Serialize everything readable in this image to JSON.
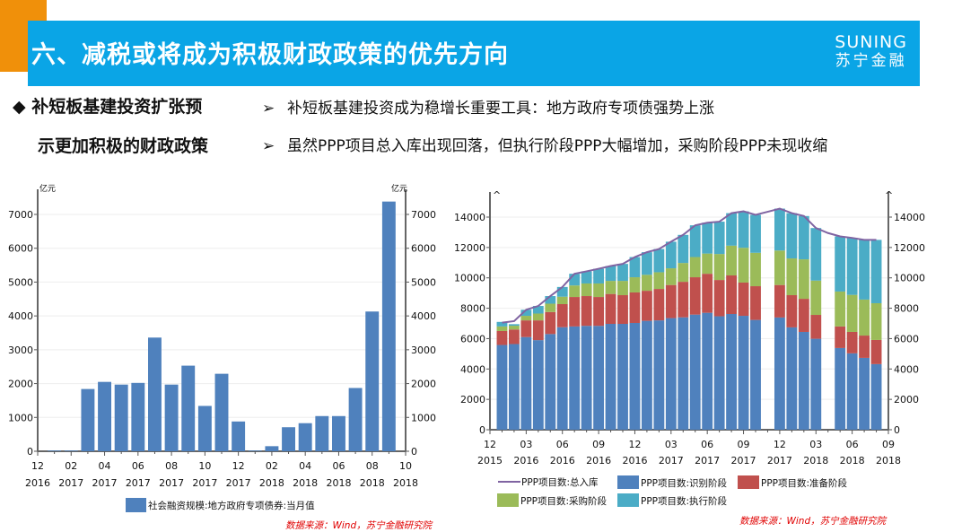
{
  "header": {
    "title": "六、减税或将成为积极财政政策的优先方向",
    "logo_en": "SUNING",
    "logo_cn": "苏宁金融"
  },
  "bullets": {
    "lead_line1": "◆ 补短板基建投资扩张预",
    "lead_line2": "示更加积极的财政政策",
    "points": [
      {
        "arrow": "➢",
        "text": "补短板基建投资成为稳增长重要工具：地方政府专项债强势上涨"
      },
      {
        "arrow": "➢",
        "text": "虽然PPP项目总入库出现回落，但执行阶段PPP大幅增加，采购阶段PPP未现收缩"
      }
    ]
  },
  "chart_data": [
    {
      "type": "bar",
      "unit_left": "亿元",
      "unit_right": "亿元",
      "ylim": [
        0,
        7000
      ],
      "yticks": [
        "0",
        "1000",
        "2000",
        "3000",
        "4000",
        "5000",
        "6000",
        "7000"
      ],
      "xtick_labels": [
        [
          "12",
          "2016"
        ],
        [
          "02",
          "2017"
        ],
        [
          "04",
          "2017"
        ],
        [
          "06",
          "2017"
        ],
        [
          "08",
          "2017"
        ],
        [
          "10",
          "2017"
        ],
        [
          "12",
          "2017"
        ],
        [
          "02",
          "2018"
        ],
        [
          "04",
          "2018"
        ],
        [
          "06",
          "2018"
        ],
        [
          "08",
          "2018"
        ],
        [
          "10",
          "2018"
        ]
      ],
      "categories": [
        "2017-01",
        "2017-02",
        "2017-03",
        "2017-04",
        "2017-05",
        "2017-06",
        "2017-07",
        "2017-08",
        "2017-09",
        "2017-10",
        "2017-11",
        "2017-12",
        "2018-01",
        "2018-02",
        "2018-03",
        "2018-04",
        "2018-05",
        "2018-06",
        "2018-07",
        "2018-08",
        "2018-09"
      ],
      "series": [
        {
          "name": "社会融资规模:地方政府专项债券:当月值",
          "color": "#4f81bd",
          "values": [
            20,
            20,
            1840,
            2050,
            1970,
            2020,
            3360,
            1970,
            2530,
            1340,
            2290,
            880,
            20,
            150,
            710,
            830,
            1040,
            1040,
            1870,
            4130,
            7380
          ]
        }
      ],
      "source": "数据来源：Wind，苏宁金融研究院",
      "grid": true,
      "legend": "bottom"
    },
    {
      "type": "bar",
      "stacked": true,
      "ylim": [
        0,
        14000
      ],
      "yticks": [
        "0",
        "2000",
        "4000",
        "6000",
        "8000",
        "10000",
        "12000",
        "14000"
      ],
      "xtick_labels": [
        [
          "12",
          "2015"
        ],
        [
          "03",
          "2016"
        ],
        [
          "06",
          "2016"
        ],
        [
          "09",
          "2016"
        ],
        [
          "12",
          "2016"
        ],
        [
          "03",
          "2017"
        ],
        [
          "06",
          "2017"
        ],
        [
          "09",
          "2017"
        ],
        [
          "12",
          "2017"
        ],
        [
          "03",
          "2018"
        ],
        [
          "06",
          "2018"
        ],
        [
          "09",
          "2018"
        ]
      ],
      "categories": [
        "2016-01",
        "2016-02",
        "2016-03",
        "2016-04",
        "2016-05",
        "2016-06",
        "2016-07",
        "2016-08",
        "2016-09",
        "2016-10",
        "2016-11",
        "2016-12",
        "2017-01",
        "2017-02",
        "2017-03",
        "2017-04",
        "2017-05",
        "2017-06",
        "2017-07",
        "2017-08",
        "2017-09",
        "2017-10",
        "2017-11",
        "2017-12",
        "2018-01",
        "2018-02",
        "2018-03",
        "2018-04",
        "2018-05",
        "2018-06",
        "2018-07",
        "2018-08"
      ],
      "series": [
        {
          "name": "PPP项目数:识别阶段",
          "color": "#4f81bd",
          "values": [
            5580,
            5640,
            6100,
            5900,
            6300,
            6750,
            6800,
            6840,
            6840,
            6970,
            6970,
            7030,
            7170,
            7200,
            7350,
            7400,
            7580,
            7700,
            7470,
            7620,
            7500,
            7230,
            null,
            7390,
            6740,
            6440,
            5990,
            null,
            5380,
            5030,
            4730,
            4320
          ]
        },
        {
          "name": "PPP项目数:准备阶段",
          "color": "#c0504d",
          "values": [
            920,
            960,
            1100,
            1300,
            1450,
            1520,
            1940,
            1960,
            1900,
            1970,
            1890,
            2010,
            1980,
            2070,
            2180,
            2340,
            2460,
            2570,
            2390,
            2540,
            2190,
            2220,
            null,
            2140,
            2120,
            2180,
            1570,
            null,
            1420,
            1410,
            1470,
            1590
          ]
        },
        {
          "name": "PPP项目数:采购阶段",
          "color": "#9bbb59",
          "values": [
            300,
            250,
            300,
            450,
            550,
            490,
            760,
            830,
            890,
            860,
            940,
            1000,
            1050,
            1100,
            1100,
            1240,
            1330,
            1330,
            1710,
            1960,
            2290,
            2200,
            null,
            2270,
            2420,
            2600,
            2260,
            null,
            2300,
            2440,
            2370,
            2420
          ]
        },
        {
          "name": "PPP项目数:执行阶段",
          "color": "#4bacc6",
          "values": [
            300,
            100,
            400,
            500,
            500,
            640,
            770,
            800,
            970,
            980,
            1120,
            1330,
            1490,
            1530,
            1750,
            1850,
            2090,
            2030,
            2130,
            2140,
            2400,
            2500,
            null,
            2760,
            2980,
            2850,
            3460,
            null,
            3630,
            3750,
            3930,
            4170
          ]
        }
      ],
      "line": {
        "name": "PPP项目数:总入库",
        "color": "#8064a2",
        "values": [
          7050,
          7150,
          7900,
          8150,
          8800,
          9400,
          10270,
          10430,
          10600,
          10780,
          10920,
          11370,
          11690,
          11900,
          12380,
          12830,
          13460,
          13630,
          13700,
          14260,
          14380,
          14150,
          14350,
          14560,
          14260,
          14070,
          13280,
          12950,
          12730,
          12630,
          12500,
          12500
        ]
      },
      "source": "数据来源：Wind，苏宁金融研究院",
      "grid": true,
      "legend": "bottom"
    }
  ]
}
